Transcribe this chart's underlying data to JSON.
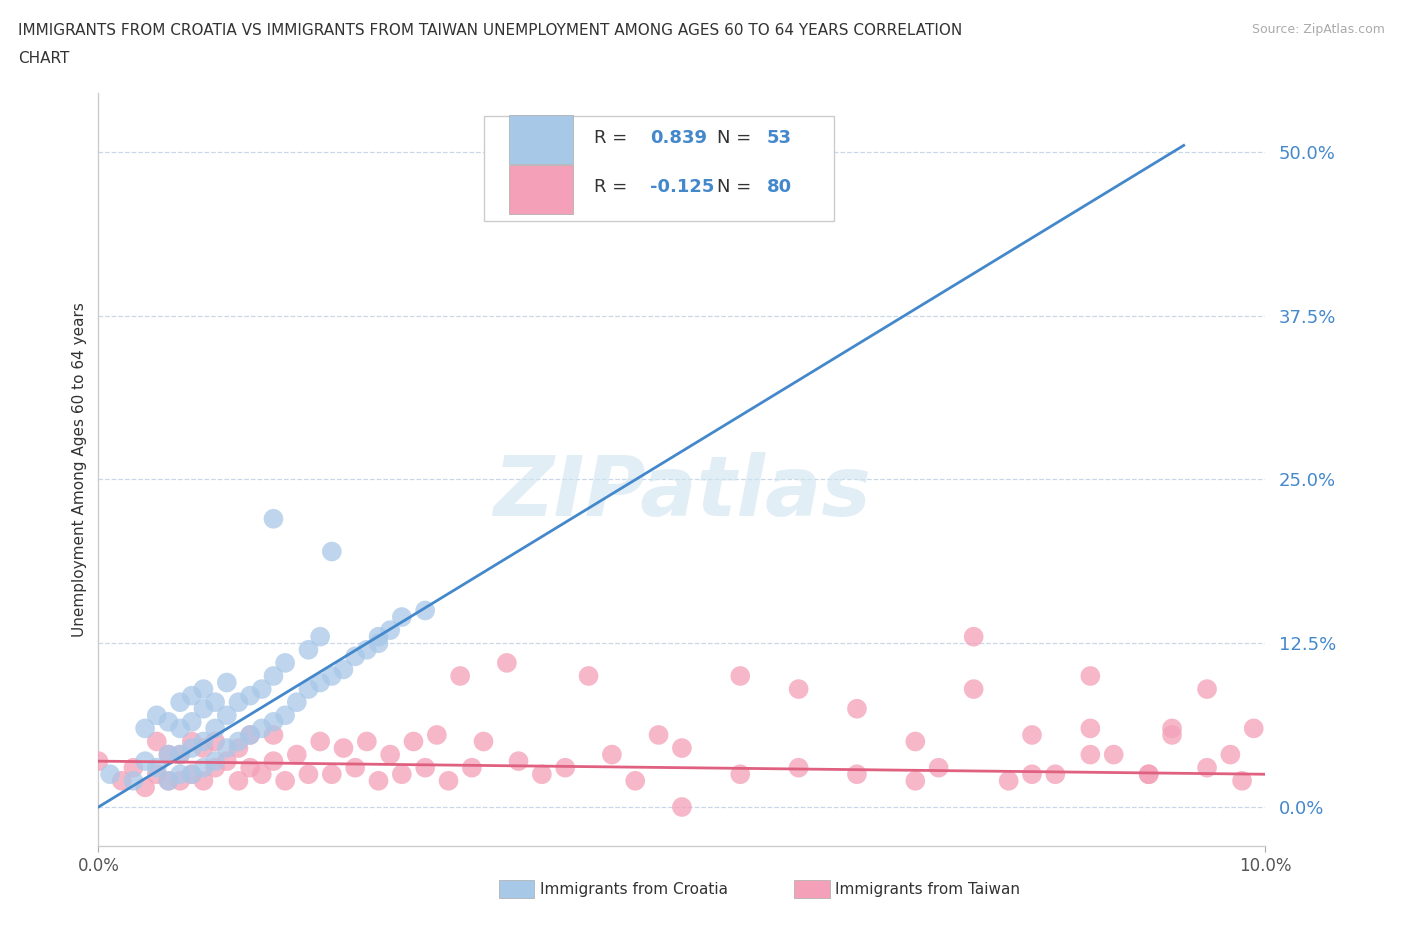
{
  "title_line1": "IMMIGRANTS FROM CROATIA VS IMMIGRANTS FROM TAIWAN UNEMPLOYMENT AMONG AGES 60 TO 64 YEARS CORRELATION",
  "title_line2": "CHART",
  "source_text": "Source: ZipAtlas.com",
  "ylabel": "Unemployment Among Ages 60 to 64 years",
  "xlim": [
    0.0,
    0.1
  ],
  "ylim": [
    -0.03,
    0.545
  ],
  "yticks": [
    0.0,
    0.125,
    0.25,
    0.375,
    0.5
  ],
  "ytick_labels": [
    "0.0%",
    "12.5%",
    "25.0%",
    "37.5%",
    "50.0%"
  ],
  "xticks": [
    0.0,
    0.1
  ],
  "xtick_labels": [
    "0.0%",
    "10.0%"
  ],
  "croatia_R": 0.839,
  "croatia_N": 53,
  "taiwan_R": -0.125,
  "taiwan_N": 80,
  "croatia_color": "#a8c8e8",
  "taiwan_color": "#f4a0b8",
  "croatia_line_color": "#4488cc",
  "taiwan_line_color": "#e06080",
  "tick_label_color": "#4488cc",
  "watermark": "ZIPatlas",
  "background_color": "#ffffff",
  "grid_color": "#c8d8e8",
  "croatia_scatter_x": [
    0.001,
    0.003,
    0.004,
    0.004,
    0.005,
    0.005,
    0.006,
    0.006,
    0.006,
    0.007,
    0.007,
    0.007,
    0.007,
    0.008,
    0.008,
    0.008,
    0.008,
    0.009,
    0.009,
    0.009,
    0.009,
    0.01,
    0.01,
    0.01,
    0.011,
    0.011,
    0.011,
    0.012,
    0.012,
    0.013,
    0.013,
    0.014,
    0.014,
    0.015,
    0.015,
    0.016,
    0.016,
    0.017,
    0.018,
    0.018,
    0.019,
    0.019,
    0.02,
    0.021,
    0.022,
    0.023,
    0.024,
    0.024,
    0.025,
    0.026,
    0.02,
    0.015,
    0.028
  ],
  "croatia_scatter_y": [
    0.025,
    0.02,
    0.035,
    0.06,
    0.03,
    0.07,
    0.02,
    0.04,
    0.065,
    0.025,
    0.04,
    0.06,
    0.08,
    0.025,
    0.045,
    0.065,
    0.085,
    0.03,
    0.05,
    0.075,
    0.09,
    0.035,
    0.06,
    0.08,
    0.045,
    0.07,
    0.095,
    0.05,
    0.08,
    0.055,
    0.085,
    0.06,
    0.09,
    0.065,
    0.1,
    0.07,
    0.11,
    0.08,
    0.09,
    0.12,
    0.095,
    0.13,
    0.1,
    0.105,
    0.115,
    0.12,
    0.125,
    0.13,
    0.135,
    0.145,
    0.195,
    0.22,
    0.15
  ],
  "taiwan_scatter_x": [
    0.0,
    0.002,
    0.003,
    0.004,
    0.005,
    0.005,
    0.006,
    0.006,
    0.007,
    0.007,
    0.008,
    0.008,
    0.009,
    0.009,
    0.01,
    0.01,
    0.011,
    0.012,
    0.012,
    0.013,
    0.013,
    0.014,
    0.015,
    0.015,
    0.016,
    0.017,
    0.018,
    0.019,
    0.02,
    0.021,
    0.022,
    0.023,
    0.024,
    0.025,
    0.026,
    0.027,
    0.028,
    0.029,
    0.03,
    0.031,
    0.032,
    0.033,
    0.035,
    0.036,
    0.038,
    0.04,
    0.042,
    0.044,
    0.046,
    0.048,
    0.05,
    0.05,
    0.055,
    0.055,
    0.06,
    0.06,
    0.065,
    0.065,
    0.07,
    0.07,
    0.072,
    0.075,
    0.078,
    0.08,
    0.082,
    0.085,
    0.087,
    0.09,
    0.092,
    0.095,
    0.097,
    0.099,
    0.075,
    0.08,
    0.085,
    0.09,
    0.092,
    0.095,
    0.085,
    0.098
  ],
  "taiwan_scatter_y": [
    0.035,
    0.02,
    0.03,
    0.015,
    0.025,
    0.05,
    0.02,
    0.04,
    0.02,
    0.04,
    0.025,
    0.05,
    0.02,
    0.045,
    0.03,
    0.05,
    0.035,
    0.02,
    0.045,
    0.03,
    0.055,
    0.025,
    0.035,
    0.055,
    0.02,
    0.04,
    0.025,
    0.05,
    0.025,
    0.045,
    0.03,
    0.05,
    0.02,
    0.04,
    0.025,
    0.05,
    0.03,
    0.055,
    0.02,
    0.1,
    0.03,
    0.05,
    0.11,
    0.035,
    0.025,
    0.03,
    0.1,
    0.04,
    0.02,
    0.055,
    0.0,
    0.045,
    0.025,
    0.1,
    0.03,
    0.09,
    0.025,
    0.075,
    0.02,
    0.05,
    0.03,
    0.09,
    0.02,
    0.055,
    0.025,
    0.1,
    0.04,
    0.025,
    0.06,
    0.09,
    0.04,
    0.06,
    0.13,
    0.025,
    0.06,
    0.025,
    0.055,
    0.03,
    0.04,
    0.02
  ],
  "croatia_line_x": [
    0.0,
    0.093
  ],
  "croatia_line_y": [
    0.0,
    0.505
  ],
  "taiwan_line_x": [
    0.0,
    0.1
  ],
  "taiwan_line_y": [
    0.035,
    0.025
  ]
}
